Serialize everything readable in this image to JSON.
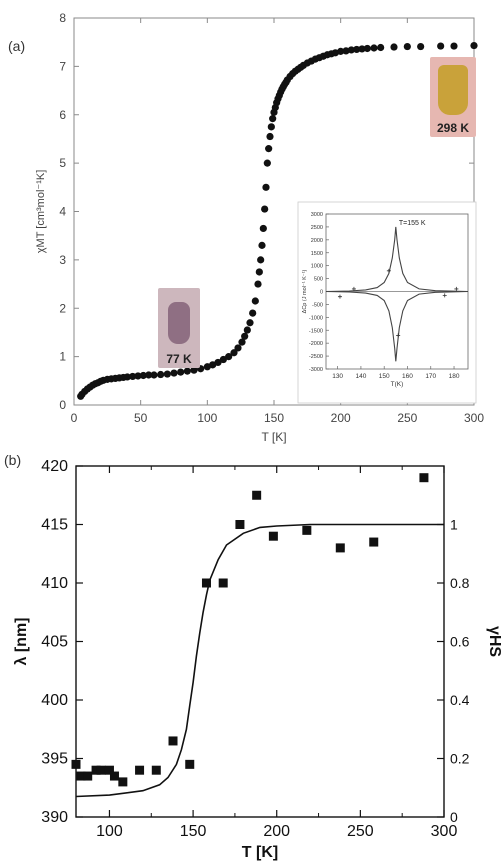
{
  "panel_labels": {
    "a": "(a)",
    "b": "(b)"
  },
  "photos": {
    "cold": {
      "caption": "77 K",
      "tint": "#cdb7bd",
      "sample_color": "#8f6f83"
    },
    "hot": {
      "caption": "298 K",
      "tint": "#e6b7b1",
      "sample_color": "#c9a23a"
    }
  },
  "chart_data": [
    {
      "type": "scatter",
      "panel": "(a)",
      "xlabel": "T [K]",
      "ylabel": "χMT [cm³mol⁻¹K]",
      "xlim": [
        0,
        300
      ],
      "ylim": [
        0,
        8
      ],
      "xticks": [
        0,
        50,
        100,
        150,
        200,
        250,
        300
      ],
      "yticks": [
        0,
        1,
        2,
        3,
        4,
        5,
        6,
        7,
        8
      ],
      "marker": "filled-circle",
      "color": "#111111",
      "series": [
        {
          "x": [
            5,
            6,
            8,
            10,
            12,
            14,
            16,
            18,
            20,
            22,
            25,
            28,
            31,
            34,
            37,
            40,
            44,
            48,
            52,
            56,
            60,
            65,
            70,
            75,
            80,
            85,
            90,
            95,
            100,
            104,
            108,
            112,
            116,
            120,
            123,
            126,
            128,
            130,
            132,
            134,
            136,
            138,
            139,
            140,
            141,
            142,
            143,
            144,
            145,
            146,
            147,
            148,
            149,
            150,
            151,
            152,
            153,
            154,
            155,
            156,
            157,
            158,
            159,
            160,
            162,
            164,
            166,
            168,
            170,
            172,
            175,
            178,
            181,
            184,
            187,
            190,
            193,
            196,
            200,
            204,
            208,
            212,
            216,
            220,
            225,
            230,
            240,
            250,
            260,
            275,
            285,
            300
          ],
          "y": [
            0.18,
            0.22,
            0.28,
            0.33,
            0.37,
            0.41,
            0.44,
            0.46,
            0.49,
            0.51,
            0.53,
            0.54,
            0.55,
            0.56,
            0.57,
            0.58,
            0.59,
            0.6,
            0.61,
            0.62,
            0.62,
            0.63,
            0.64,
            0.66,
            0.68,
            0.7,
            0.72,
            0.75,
            0.79,
            0.83,
            0.88,
            0.94,
            1.0,
            1.08,
            1.18,
            1.3,
            1.42,
            1.55,
            1.7,
            1.9,
            2.15,
            2.5,
            2.75,
            3.0,
            3.3,
            3.65,
            4.05,
            4.5,
            5.0,
            5.3,
            5.55,
            5.75,
            5.92,
            6.05,
            6.15,
            6.25,
            6.33,
            6.4,
            6.47,
            6.53,
            6.58,
            6.63,
            6.67,
            6.72,
            6.79,
            6.85,
            6.9,
            6.94,
            6.98,
            7.02,
            7.07,
            7.11,
            7.15,
            7.18,
            7.21,
            7.24,
            7.26,
            7.28,
            7.31,
            7.32,
            7.34,
            7.35,
            7.36,
            7.37,
            7.38,
            7.39,
            7.4,
            7.41,
            7.41,
            7.42,
            7.42,
            7.43
          ]
        }
      ],
      "inset": {
        "type": "line",
        "title": "",
        "xlabel": "T(K)",
        "ylabel": "ΔCp (J mol⁻¹ K⁻¹)",
        "xlim": [
          125,
          186
        ],
        "ylim": [
          -3000,
          3000
        ],
        "xticks": [
          130,
          140,
          150,
          160,
          170,
          180
        ],
        "yticks": [
          -3000,
          -2500,
          -2000,
          -1500,
          -1000,
          -500,
          0,
          500,
          1000,
          1500,
          2000,
          2500,
          3000
        ],
        "annotation": "T=155 K",
        "peak": {
          "x": 155,
          "heating_y": 2500,
          "cooling_y": -2700
        },
        "series": [
          {
            "x": [
              125,
              135,
              142,
              147,
              150,
              152,
              153.5,
              154.5,
              155,
              155.5,
              156.5,
              158,
              160,
              165,
              172,
              186
            ],
            "y": [
              0,
              20,
              60,
              150,
              350,
              700,
              1300,
              2000,
              2500,
              2000,
              1300,
              700,
              350,
              100,
              30,
              0
            ]
          },
          {
            "x": [
              125,
              135,
              142,
              147,
              150,
              152,
              153.5,
              154.5,
              155,
              155.5,
              156.5,
              158,
              160,
              165,
              172,
              186
            ],
            "y": [
              0,
              -20,
              -60,
              -150,
              -350,
              -750,
              -1400,
              -2200,
              -2700,
              -2200,
              -1400,
              -750,
              -350,
              -100,
              -30,
              0
            ]
          }
        ],
        "markers": {
          "x": [
            131,
            137,
            152,
            156,
            176,
            181
          ],
          "y": [
            -200,
            100,
            800,
            -1700,
            -150,
            100
          ]
        }
      }
    },
    {
      "type": "scatter",
      "panel": "(b)",
      "xlabel": "T [K]",
      "ylabel": "λ [nm]",
      "ylabel_right": "γHS",
      "xlim": [
        80,
        300
      ],
      "ylim": [
        390,
        420
      ],
      "ylim_right": [
        0,
        1.2
      ],
      "xticks": [
        100,
        150,
        200,
        250,
        300
      ],
      "yticks": [
        390,
        395,
        400,
        405,
        410,
        415,
        420
      ],
      "yticks_right": [
        0,
        0.2,
        0.4,
        0.6,
        0.8,
        1
      ],
      "marker": "filled-square",
      "series": [
        {
          "x": [
            80,
            83,
            87,
            92,
            95,
            100,
            103,
            108,
            118,
            128,
            138,
            148,
            158,
            168,
            178,
            188,
            198,
            218,
            238,
            258,
            288
          ],
          "y": [
            394.5,
            393.5,
            393.5,
            394,
            394,
            394,
            393.5,
            393,
            394,
            394,
            396.5,
            394.5,
            410,
            410,
            415,
            417.5,
            414,
            414.5,
            413,
            413.5,
            419
          ]
        },
        {
          "x": [
            80,
            100,
            120,
            130,
            135,
            140,
            143,
            146,
            148,
            150,
            152,
            154,
            156,
            158,
            160,
            165,
            170,
            180,
            190,
            200,
            220,
            250,
            300
          ],
          "y": [
            0.07,
            0.075,
            0.09,
            0.11,
            0.135,
            0.18,
            0.23,
            0.3,
            0.38,
            0.46,
            0.55,
            0.63,
            0.7,
            0.76,
            0.81,
            0.88,
            0.93,
            0.97,
            0.99,
            0.995,
            1.0,
            1.0,
            1.0
          ]
        }
      ]
    }
  ]
}
